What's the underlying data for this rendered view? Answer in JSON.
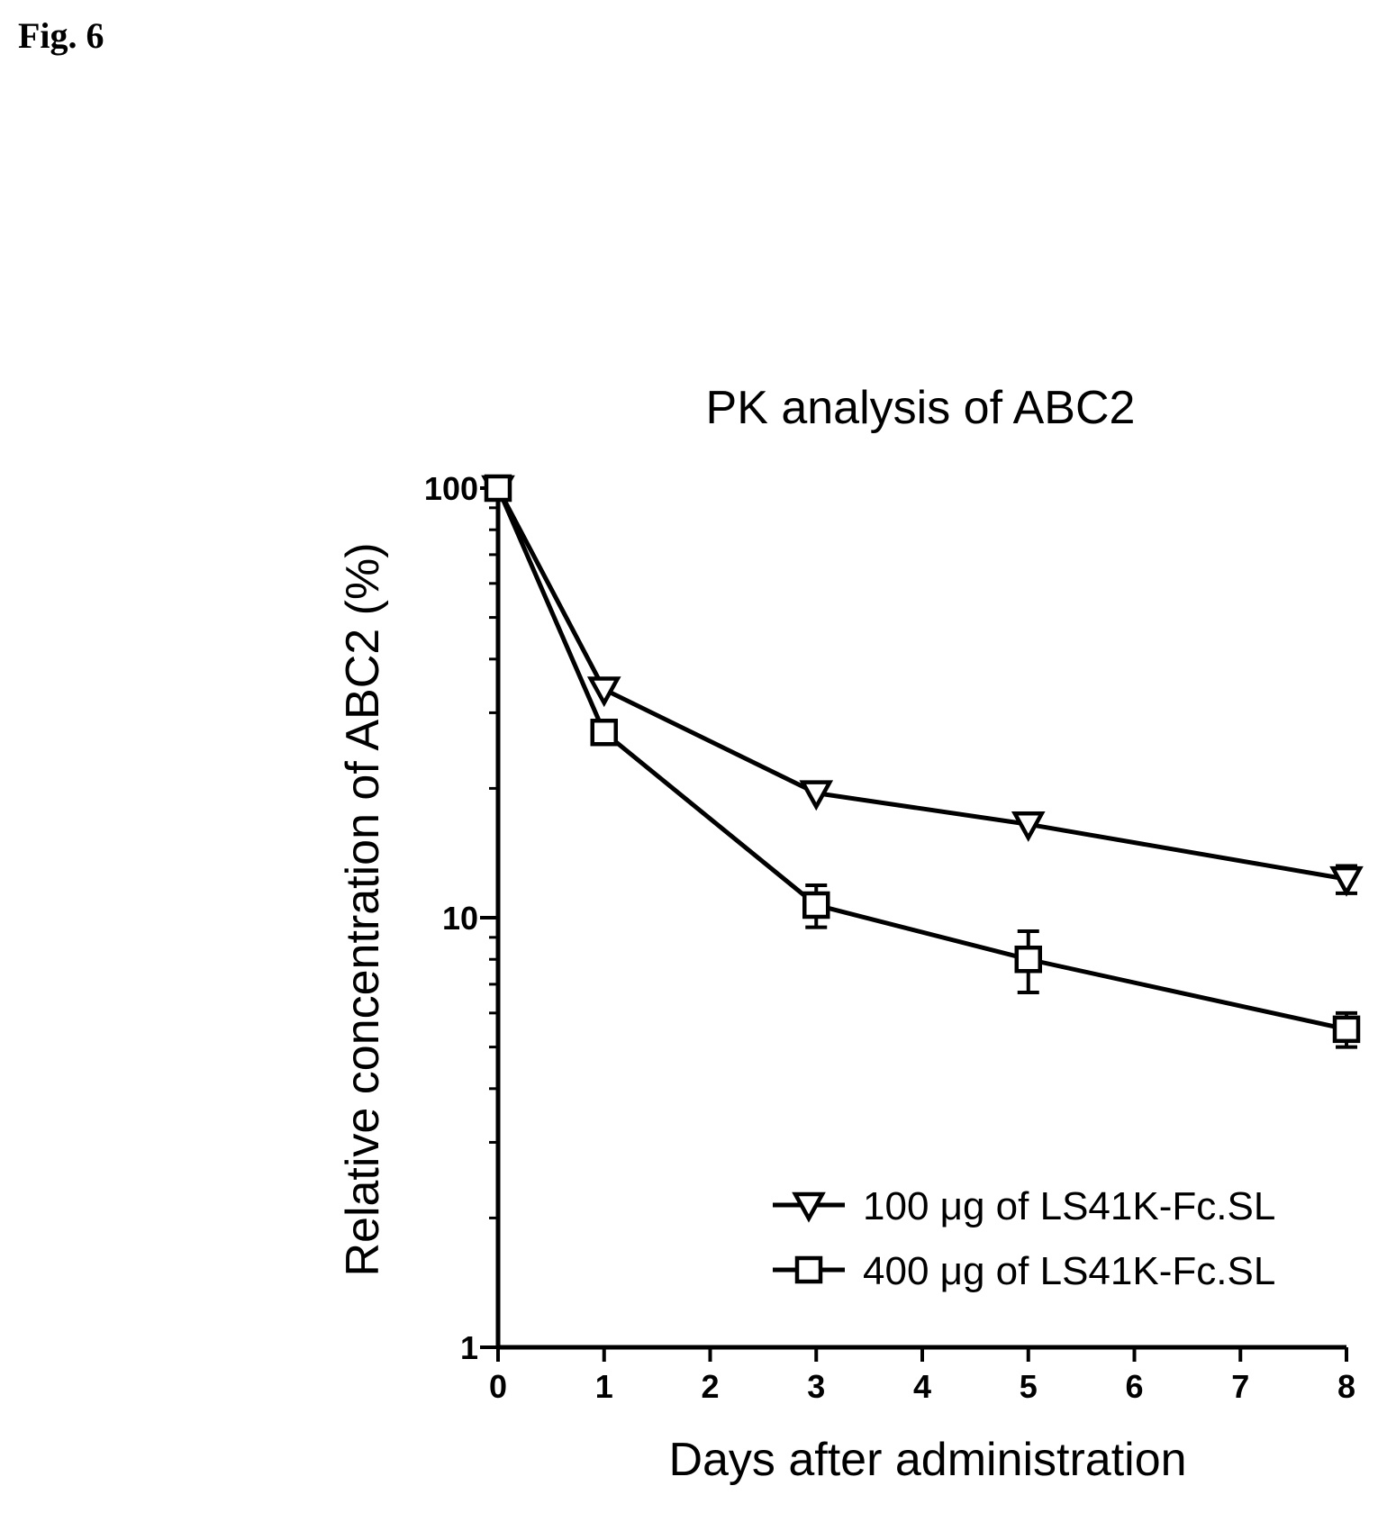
{
  "figure_label": "Fig. 6",
  "chart_data": {
    "type": "line",
    "title": "PK analysis of ABC2",
    "xlabel": "Days after administration",
    "ylabel": "Relative concentration of ABC2 (%)",
    "xlim": [
      0,
      8
    ],
    "ylim": [
      1,
      100
    ],
    "yscale": "log",
    "x_ticks": [
      0,
      1,
      2,
      3,
      4,
      5,
      6,
      7,
      8
    ],
    "y_ticks": [
      1,
      10,
      100
    ],
    "grid": false,
    "legend_position": "bottom-right",
    "series": [
      {
        "name": "100 μg of LS41K-Fc.SL",
        "marker": "triangle-down-open",
        "x": [
          0,
          1,
          3,
          5,
          8
        ],
        "y": [
          100,
          34,
          19.5,
          16.5,
          12.3
        ],
        "error": [
          0,
          0,
          0,
          0,
          0.9
        ]
      },
      {
        "name": "400 μg of LS41K-Fc.SL",
        "marker": "square-open",
        "x": [
          0,
          1,
          3,
          5,
          8
        ],
        "y": [
          100,
          27,
          10.7,
          8.0,
          5.5
        ],
        "error": [
          0,
          0,
          1.2,
          1.3,
          0.5
        ]
      }
    ]
  }
}
